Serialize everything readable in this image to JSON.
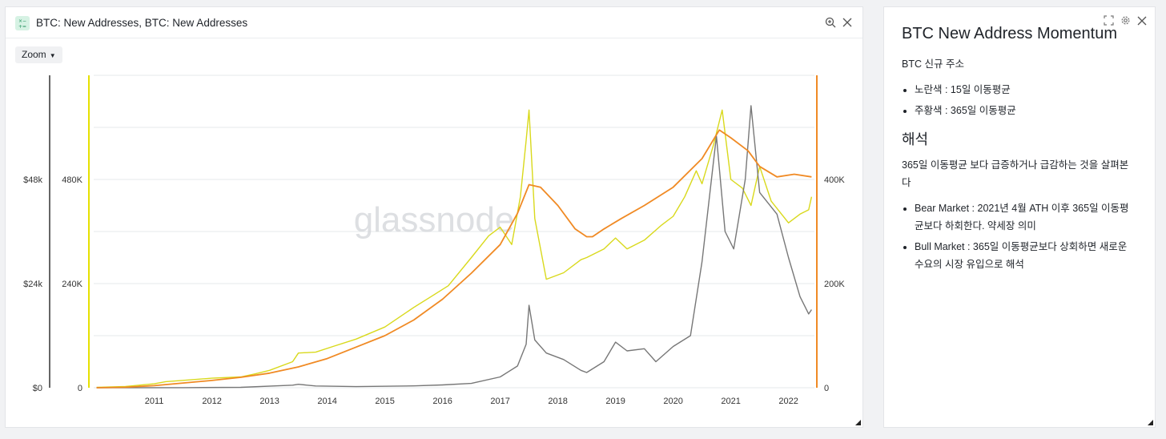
{
  "chart_panel": {
    "title": "BTC: New Addresses, BTC: New Addresses",
    "zoom_label": "Zoom",
    "watermark": "glassnode"
  },
  "note_panel": {
    "title": "BTC New Address Momentum",
    "intro": "BTC 신규 주소",
    "legend_items": [
      "노란색 : 15일 이동평균",
      "주황색 : 365일 이동평균"
    ],
    "section_heading": "해석",
    "section_text": "365일 이동평균 보다 급증하거나 급감하는 것을 살펴본다",
    "interpretation_items": [
      "Bear Market : 2021년 4월 ATH 이후 365일 이동평균보다 하회한다. 약세장 의미",
      "Bull Market : 365일 이동평균보다 상회하면 새로운 수요의 시장 유입으로 해석"
    ]
  },
  "chart_data": {
    "type": "line",
    "x_ticks": [
      "2011",
      "2012",
      "2013",
      "2014",
      "2015",
      "2016",
      "2017",
      "2018",
      "2019",
      "2020",
      "2021",
      "2022"
    ],
    "y_price_ticks": [
      "$0",
      "$24k",
      "$48k"
    ],
    "y_price_lim": [
      0,
      72000
    ],
    "y_left_ticks": [
      "0",
      "240K",
      "480K"
    ],
    "y_left_lim": [
      0,
      720000
    ],
    "y_right_ticks": [
      "0",
      "200K",
      "400K"
    ],
    "y_right_lim": [
      0,
      600000
    ],
    "grid": true,
    "colors": {
      "price": "#777777",
      "ma15": "#d9d91c",
      "ma365": "#f08a24",
      "price_axis": "#333333",
      "left_axis": "#e6e000",
      "right_axis": "#f08a24"
    },
    "series": [
      {
        "key": "ma15",
        "axis": "left",
        "x": [
          2010.5,
          2011.0,
          2011.5,
          2011.7,
          2012.0,
          2012.5,
          2013.0,
          2013.25,
          2013.5,
          2013.9,
          2014.0,
          2014.3,
          2014.6,
          2015.0,
          2015.5,
          2016.0,
          2016.3,
          2016.6,
          2017.0,
          2017.3,
          2017.5,
          2017.7,
          2017.85,
          2017.95,
          2018.0,
          2018.1,
          2018.3,
          2018.6,
          2018.9,
          2019.0,
          2019.3,
          2019.5,
          2019.7,
          2020.0,
          2020.3,
          2020.5,
          2020.7,
          2020.9,
          2021.0,
          2021.2,
          2021.35,
          2021.5,
          2021.7,
          2021.85,
          2022.0,
          2022.2,
          2022.5,
          2022.7,
          2022.85,
          2022.9
        ],
        "y": [
          1000,
          3000,
          9000,
          14000,
          17000,
          22000,
          25000,
          32000,
          40000,
          60000,
          80000,
          82000,
          95000,
          112000,
          140000,
          185000,
          210000,
          235000,
          300000,
          350000,
          370000,
          330000,
          440000,
          570000,
          640000,
          390000,
          250000,
          265000,
          295000,
          300000,
          320000,
          345000,
          320000,
          340000,
          375000,
          395000,
          440000,
          500000,
          470000,
          560000,
          640000,
          480000,
          460000,
          420000,
          510000,
          430000,
          380000,
          400000,
          410000,
          440000
        ]
      },
      {
        "key": "ma365",
        "axis": "right",
        "x": [
          2010.5,
          2011.0,
          2011.5,
          2012.0,
          2012.5,
          2013.0,
          2013.5,
          2014.0,
          2014.5,
          2015.0,
          2015.5,
          2016.0,
          2016.5,
          2017.0,
          2017.5,
          2017.8,
          2018.0,
          2018.2,
          2018.5,
          2018.8,
          2019.0,
          2019.1,
          2019.3,
          2019.6,
          2020.0,
          2020.5,
          2021.0,
          2021.3,
          2021.5,
          2021.8,
          2022.0,
          2022.3,
          2022.6,
          2022.9
        ],
        "y": [
          0,
          1000,
          4000,
          9000,
          14000,
          20000,
          28000,
          40000,
          56000,
          78000,
          100000,
          130000,
          170000,
          220000,
          275000,
          335000,
          390000,
          385000,
          350000,
          305000,
          290000,
          290000,
          305000,
          325000,
          350000,
          385000,
          440000,
          495000,
          480000,
          455000,
          425000,
          405000,
          410000,
          405000
        ]
      },
      {
        "key": "price",
        "axis": "price",
        "x": [
          2010.5,
          2012.0,
          2013.0,
          2013.9,
          2014.0,
          2014.3,
          2015.0,
          2016.0,
          2016.5,
          2017.0,
          2017.5,
          2017.8,
          2017.95,
          2018.0,
          2018.1,
          2018.3,
          2018.6,
          2018.9,
          2019.0,
          2019.3,
          2019.5,
          2019.7,
          2020.0,
          2020.2,
          2020.5,
          2020.8,
          2021.0,
          2021.25,
          2021.4,
          2021.55,
          2021.75,
          2021.85,
          2022.0,
          2022.3,
          2022.5,
          2022.7,
          2022.85,
          2022.9
        ],
        "y": [
          0,
          10,
          100,
          600,
          800,
          400,
          250,
          430,
          650,
          1000,
          2500,
          5000,
          10000,
          19000,
          11000,
          8000,
          6500,
          4000,
          3500,
          6000,
          10500,
          8500,
          9000,
          6000,
          9500,
          12000,
          29000,
          58000,
          36000,
          32000,
          48000,
          65000,
          45000,
          40000,
          30000,
          21000,
          17000,
          18000
        ]
      }
    ]
  }
}
